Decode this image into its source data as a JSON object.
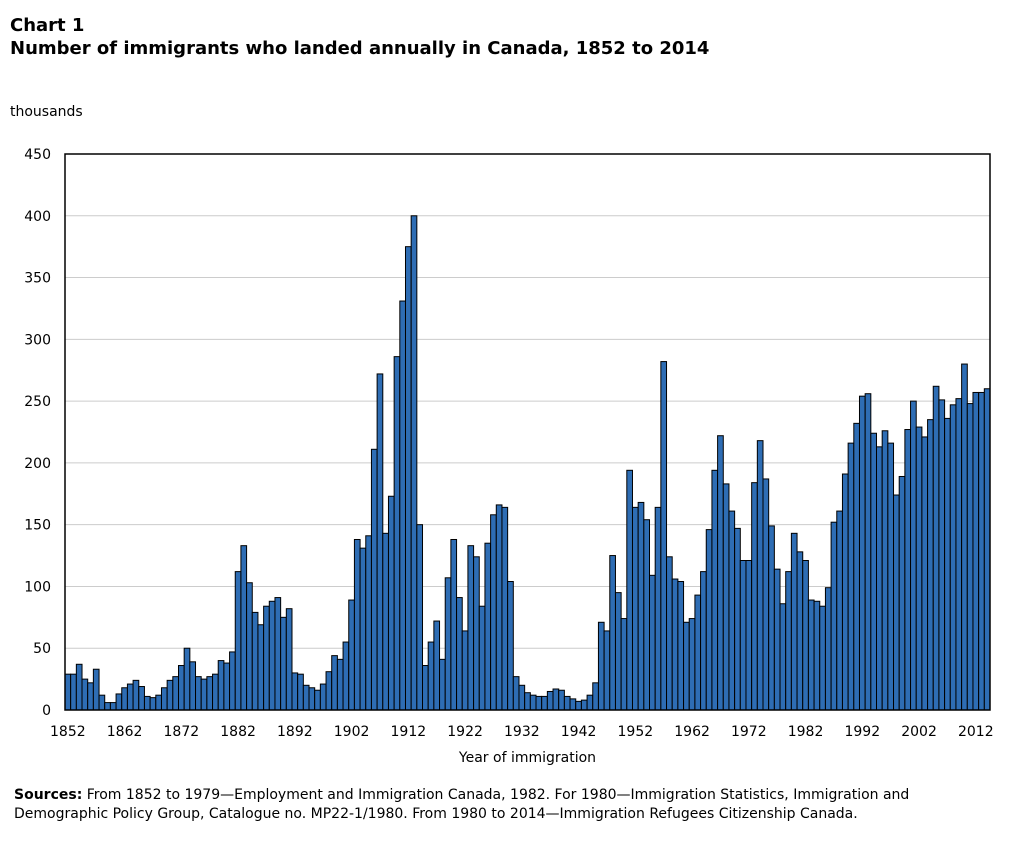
{
  "header": {
    "chart_label": "Chart 1",
    "title": "Number of immigrants who landed annually in Canada, 1852 to 2014",
    "unit": "thousands"
  },
  "colors": {
    "bar_fill": "#2e6db4",
    "bar_stroke": "#000000",
    "grid": "#cccccc"
  },
  "chart_data": {
    "type": "bar",
    "title": "Number of immigrants who landed annually in Canada, 1852 to 2014",
    "xlabel": "Year of immigration",
    "ylabel": "thousands",
    "ylim": [
      0,
      450
    ],
    "yticks": [
      0,
      50,
      100,
      150,
      200,
      250,
      300,
      350,
      400,
      450
    ],
    "xtick_labels": [
      "1852",
      "1862",
      "1872",
      "1882",
      "1892",
      "1902",
      "1912",
      "1922",
      "1932",
      "1942",
      "1952",
      "1962",
      "1972",
      "1982",
      "1992",
      "2002",
      "2012"
    ],
    "grid": "horizontal",
    "categories": [
      1852,
      1853,
      1854,
      1855,
      1856,
      1857,
      1858,
      1859,
      1860,
      1861,
      1862,
      1863,
      1864,
      1865,
      1866,
      1867,
      1868,
      1869,
      1870,
      1871,
      1872,
      1873,
      1874,
      1875,
      1876,
      1877,
      1878,
      1879,
      1880,
      1881,
      1882,
      1883,
      1884,
      1885,
      1886,
      1887,
      1888,
      1889,
      1890,
      1891,
      1892,
      1893,
      1894,
      1895,
      1896,
      1897,
      1898,
      1899,
      1900,
      1901,
      1902,
      1903,
      1904,
      1905,
      1906,
      1907,
      1908,
      1909,
      1910,
      1911,
      1912,
      1913,
      1914,
      1915,
      1916,
      1917,
      1918,
      1919,
      1920,
      1921,
      1922,
      1923,
      1924,
      1925,
      1926,
      1927,
      1928,
      1929,
      1930,
      1931,
      1932,
      1933,
      1934,
      1935,
      1936,
      1937,
      1938,
      1939,
      1940,
      1941,
      1942,
      1943,
      1944,
      1945,
      1946,
      1947,
      1948,
      1949,
      1950,
      1951,
      1952,
      1953,
      1954,
      1955,
      1956,
      1957,
      1958,
      1959,
      1960,
      1961,
      1962,
      1963,
      1964,
      1965,
      1966,
      1967,
      1968,
      1969,
      1970,
      1971,
      1972,
      1973,
      1974,
      1975,
      1976,
      1977,
      1978,
      1979,
      1980,
      1981,
      1982,
      1983,
      1984,
      1985,
      1986,
      1987,
      1988,
      1989,
      1990,
      1991,
      1992,
      1993,
      1994,
      1995,
      1996,
      1997,
      1998,
      1999,
      2000,
      2001,
      2002,
      2003,
      2004,
      2005,
      2006,
      2007,
      2008,
      2009,
      2010,
      2011,
      2012,
      2013,
      2014
    ],
    "values": [
      29,
      29,
      37,
      25,
      22,
      33,
      12,
      6,
      6,
      13,
      18,
      21,
      24,
      19,
      11,
      10,
      12,
      18,
      24,
      27,
      36,
      50,
      39,
      27,
      25,
      27,
      29,
      40,
      38,
      47,
      112,
      133,
      103,
      79,
      69,
      84,
      88,
      91,
      75,
      82,
      30,
      29,
      20,
      18,
      16,
      21,
      31,
      44,
      41,
      55,
      89,
      138,
      131,
      141,
      211,
      272,
      143,
      173,
      286,
      331,
      375,
      400,
      150,
      36,
      55,
      72,
      41,
      107,
      138,
      91,
      64,
      133,
      124,
      84,
      135,
      158,
      166,
      164,
      104,
      27,
      20,
      14,
      12,
      11,
      11,
      15,
      17,
      16,
      11,
      9,
      7,
      8,
      12,
      22,
      71,
      64,
      125,
      95,
      74,
      194,
      164,
      168,
      154,
      109,
      164,
      282,
      124,
      106,
      104,
      71,
      74,
      93,
      112,
      146,
      194,
      222,
      183,
      161,
      147,
      121,
      121,
      184,
      218,
      187,
      149,
      114,
      86,
      112,
      143,
      128,
      121,
      89,
      88,
      84,
      99,
      152,
      161,
      191,
      216,
      232,
      254,
      256,
      224,
      213,
      226,
      216,
      174,
      189,
      227,
      250,
      229,
      221,
      235,
      262,
      251,
      236,
      247,
      252,
      280,
      248,
      257,
      257,
      260
    ]
  },
  "sources": {
    "label": "Sources:",
    "text": " From 1852 to 1979—Employment and Immigration Canada, 1982. For 1980—Immigration Statistics, Immigration and Demographic Policy Group, Catalogue no. MP22-1/1980. From 1980 to 2014—Immigration Refugees Citizenship Canada."
  }
}
